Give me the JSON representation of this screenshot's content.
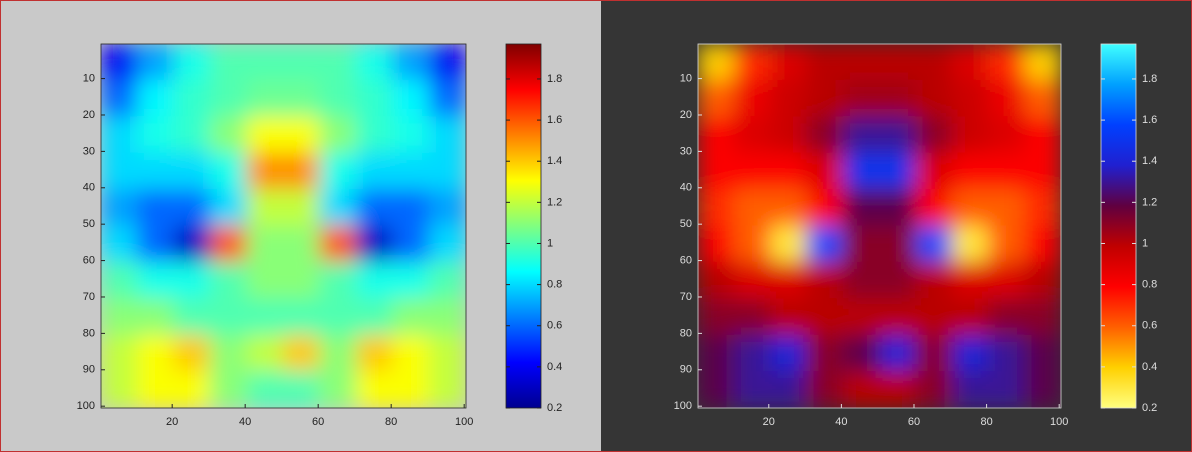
{
  "chart_data": [
    {
      "type": "heatmap",
      "xlim": [
        0.5,
        100.5
      ],
      "ylim": [
        0.5,
        100.5
      ],
      "xticks": [
        20,
        40,
        60,
        80,
        100
      ],
      "yticks": [
        10,
        20,
        30,
        40,
        50,
        60,
        70,
        80,
        90,
        100
      ],
      "clim": [
        0.2,
        1.97
      ],
      "cticks": [
        0.2,
        0.4,
        0.6,
        0.8,
        1,
        1.2,
        1.4,
        1.6,
        1.8
      ],
      "colormap": [
        "#00008f",
        "#0000ff",
        "#0080ff",
        "#00ffff",
        "#80ff80",
        "#ffff00",
        "#ff8000",
        "#ff0000",
        "#800000"
      ],
      "values": [
        [
          0.4,
          0.7,
          0.9,
          1.0,
          1.0,
          1.0,
          1.0,
          0.9,
          0.7,
          0.4
        ],
        [
          0.6,
          0.85,
          0.95,
          1.0,
          1.05,
          1.05,
          1.0,
          0.95,
          0.85,
          0.6
        ],
        [
          0.8,
          0.9,
          0.95,
          1.1,
          1.3,
          1.3,
          1.1,
          0.95,
          0.9,
          0.8
        ],
        [
          0.8,
          0.8,
          0.8,
          0.9,
          1.5,
          1.5,
          0.9,
          0.8,
          0.8,
          0.8
        ],
        [
          0.7,
          0.6,
          0.6,
          0.8,
          1.2,
          1.2,
          0.8,
          0.6,
          0.6,
          0.7
        ],
        [
          0.8,
          0.6,
          0.3,
          1.6,
          1.1,
          1.1,
          1.6,
          0.3,
          0.6,
          0.8
        ],
        [
          1.0,
          0.9,
          0.9,
          1.0,
          1.1,
          1.1,
          1.0,
          0.9,
          0.9,
          1.0
        ],
        [
          1.1,
          1.1,
          1.0,
          1.0,
          1.0,
          1.0,
          1.0,
          1.0,
          1.1,
          1.1
        ],
        [
          1.2,
          1.3,
          1.4,
          1.1,
          1.2,
          1.4,
          1.1,
          1.4,
          1.3,
          1.2
        ],
        [
          1.2,
          1.3,
          1.3,
          1.1,
          1.0,
          1.0,
          1.1,
          1.3,
          1.3,
          1.2
        ]
      ]
    },
    {
      "type": "heatmap",
      "xlim": [
        0.5,
        100.5
      ],
      "ylim": [
        0.5,
        100.5
      ],
      "xticks": [
        20,
        40,
        60,
        80,
        100
      ],
      "yticks": [
        10,
        20,
        30,
        40,
        50,
        60,
        70,
        80,
        90,
        100
      ],
      "clim": [
        0.2,
        1.97
      ],
      "cticks": [
        0.2,
        0.4,
        0.6,
        0.8,
        1,
        1.2,
        1.4,
        1.6,
        1.8
      ],
      "colormap": [
        "#ffff80",
        "#ffd000",
        "#ff6000",
        "#ff0000",
        "#c00000",
        "#600040",
        "#2020d0",
        "#0040ff",
        "#00a0ff",
        "#40ffff"
      ],
      "values": [
        [
          0.4,
          0.7,
          0.9,
          1.0,
          1.0,
          1.0,
          1.0,
          0.9,
          0.7,
          0.4
        ],
        [
          0.6,
          0.85,
          0.95,
          1.0,
          1.05,
          1.05,
          1.0,
          0.95,
          0.85,
          0.6
        ],
        [
          0.8,
          0.9,
          0.95,
          1.1,
          1.3,
          1.3,
          1.1,
          0.95,
          0.9,
          0.8
        ],
        [
          0.8,
          0.8,
          0.8,
          0.9,
          1.5,
          1.5,
          0.9,
          0.8,
          0.8,
          0.8
        ],
        [
          0.7,
          0.6,
          0.6,
          0.8,
          1.2,
          1.2,
          0.8,
          0.6,
          0.6,
          0.7
        ],
        [
          0.8,
          0.6,
          0.3,
          1.6,
          1.1,
          1.1,
          1.6,
          0.3,
          0.6,
          0.8
        ],
        [
          1.0,
          0.9,
          0.9,
          1.0,
          1.1,
          1.1,
          1.0,
          0.9,
          0.9,
          1.0
        ],
        [
          1.1,
          1.1,
          1.0,
          1.0,
          1.0,
          1.0,
          1.0,
          1.0,
          1.1,
          1.1
        ],
        [
          1.2,
          1.3,
          1.4,
          1.1,
          1.2,
          1.4,
          1.1,
          1.4,
          1.3,
          1.2
        ],
        [
          1.2,
          1.3,
          1.3,
          1.1,
          1.0,
          1.0,
          1.1,
          1.3,
          1.3,
          1.2
        ]
      ]
    }
  ]
}
